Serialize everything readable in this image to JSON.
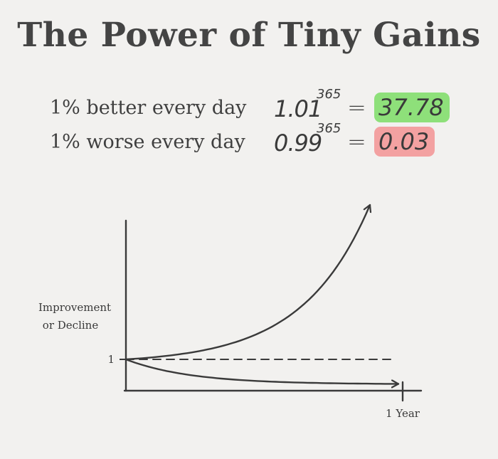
{
  "title": "The Power of Tiny Gains",
  "equations": [
    {
      "label": "1% better every day",
      "base": "1.01",
      "exponent": "365",
      "equals": "=",
      "result": "37.78",
      "highlight": "#8ee07a"
    },
    {
      "label": "1% worse every day",
      "base": "0.99",
      "exponent": "365",
      "equals": "=",
      "result": "0.03",
      "highlight": "#f3a1a1"
    }
  ],
  "chart_data": {
    "type": "line",
    "ylabel_lines": [
      "Improvement",
      "or Decline"
    ],
    "y_tick_label": "1",
    "x_tick_label": "1 Year",
    "x": [
      0,
      0.25,
      0.5,
      0.75,
      0.9,
      1.0
    ],
    "xlim": [
      0,
      1
    ],
    "ylim": [
      0,
      40
    ],
    "series": [
      {
        "values": [
          1,
          2.49,
          6.17,
          15.32,
          26.6,
          37.78
        ],
        "style": "solid-arrow",
        "color": "#3a3a3a"
      },
      {
        "values": [
          1,
          0.4,
          0.16,
          0.06,
          0.04,
          0.03
        ],
        "style": "solid-arrow",
        "color": "#3a3a3a"
      },
      {
        "values": [
          1,
          1,
          1,
          1,
          1,
          1
        ],
        "style": "dashed",
        "color": "#3a3a3a"
      }
    ]
  }
}
